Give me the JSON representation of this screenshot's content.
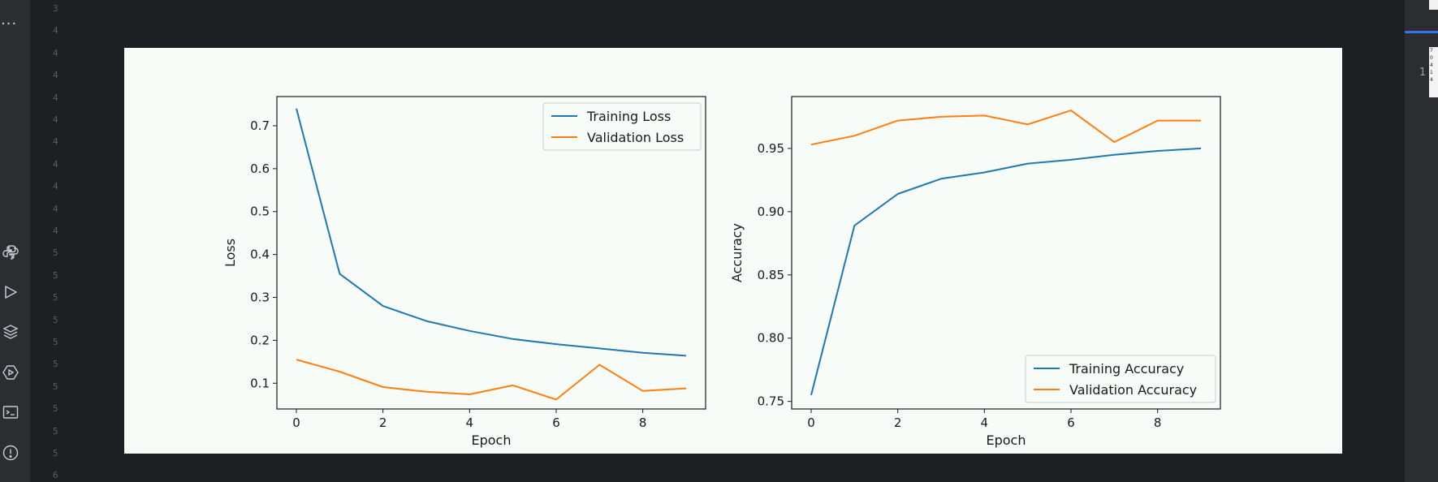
{
  "activity_bar": {
    "more_label": "...",
    "icons": [
      "python-icon",
      "run-icon",
      "layers-icon",
      "debug-icon",
      "terminal-icon",
      "alert-icon"
    ]
  },
  "gutter_numbers": [
    "3",
    "4",
    "4",
    "4",
    "4",
    "4",
    "4",
    "4",
    "4",
    "4",
    "4",
    "5",
    "5",
    "5",
    "5",
    "5",
    "5",
    "5",
    "5",
    "5",
    "5",
    "6"
  ],
  "right_panel": {
    "line_number": "1",
    "thumbnail_lines": [
      "7",
      "0",
      "4",
      "1",
      "4"
    ]
  },
  "chart_data": [
    {
      "type": "line",
      "title": "",
      "xlabel": "Epoch",
      "ylabel": "Loss",
      "x": [
        0,
        1,
        2,
        3,
        4,
        5,
        6,
        7,
        8,
        9
      ],
      "xlim": [
        -0.45,
        9.45
      ],
      "ylim": [
        0.04,
        0.768
      ],
      "xticks": [
        0,
        2,
        4,
        6,
        8
      ],
      "yticks": [
        0.1,
        0.2,
        0.3,
        0.4,
        0.5,
        0.6,
        0.7
      ],
      "ytick_labels": [
        "0.1",
        "0.2",
        "0.3",
        "0.4",
        "0.5",
        "0.6",
        "0.7"
      ],
      "xtick_labels": [
        "0",
        "2",
        "4",
        "6",
        "8"
      ],
      "legend_position": "upper right",
      "series": [
        {
          "name": "Training Loss",
          "color": "#1f77b4",
          "values": [
            0.74,
            0.355,
            0.28,
            0.245,
            0.222,
            0.203,
            0.191,
            0.181,
            0.171,
            0.164
          ]
        },
        {
          "name": "Validation Loss",
          "color": "#ff7f0e",
          "values": [
            0.155,
            0.127,
            0.091,
            0.08,
            0.074,
            0.095,
            0.062,
            0.143,
            0.082,
            0.088
          ]
        }
      ]
    },
    {
      "type": "line",
      "title": "",
      "xlabel": "Epoch",
      "ylabel": "Accuracy",
      "x": [
        0,
        1,
        2,
        3,
        4,
        5,
        6,
        7,
        8,
        9
      ],
      "xlim": [
        -0.45,
        9.45
      ],
      "ylim": [
        0.744,
        0.991
      ],
      "xticks": [
        0,
        2,
        4,
        6,
        8
      ],
      "yticks": [
        0.75,
        0.8,
        0.85,
        0.9,
        0.95
      ],
      "ytick_labels": [
        "0.75",
        "0.80",
        "0.85",
        "0.90",
        "0.95"
      ],
      "xtick_labels": [
        "0",
        "2",
        "4",
        "6",
        "8"
      ],
      "legend_position": "lower right",
      "series": [
        {
          "name": "Training Accuracy",
          "color": "#1f77b4",
          "values": [
            0.755,
            0.889,
            0.914,
            0.926,
            0.931,
            0.938,
            0.941,
            0.945,
            0.948,
            0.95
          ]
        },
        {
          "name": "Validation Accuracy",
          "color": "#ff7f0e",
          "values": [
            0.953,
            0.96,
            0.972,
            0.975,
            0.976,
            0.969,
            0.98,
            0.955,
            0.972,
            0.972
          ]
        }
      ]
    }
  ]
}
